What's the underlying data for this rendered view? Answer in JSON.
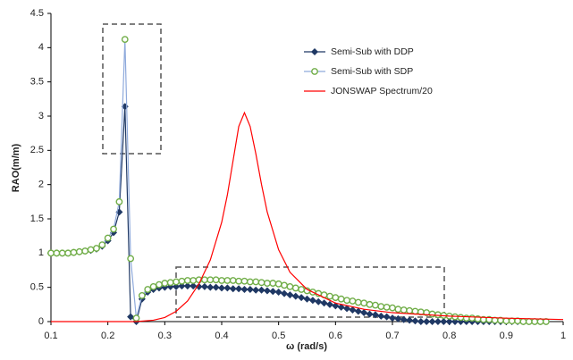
{
  "chart_data": {
    "type": "line",
    "xlabel": "ω (rad/s)",
    "ylabel": "RAO(m/m)",
    "xlim": [
      0.1,
      1
    ],
    "xticks": [
      0.1,
      0.2,
      0.3,
      0.4,
      0.5,
      0.6,
      0.7,
      0.8,
      0.9,
      1
    ],
    "ylim": [
      0,
      4.5
    ],
    "yticks": [
      0,
      0.5,
      1,
      1.5,
      2,
      2.5,
      3,
      3.5,
      4,
      4.5
    ],
    "grid": false,
    "legend": "upper-center",
    "series": [
      {
        "name": "Semi-Sub with DDP",
        "color": "#1f3864",
        "marker": "diamond",
        "x": [
          0.1,
          0.11,
          0.12,
          0.13,
          0.14,
          0.15,
          0.16,
          0.17,
          0.18,
          0.19,
          0.2,
          0.21,
          0.22,
          0.23,
          0.24,
          0.25,
          0.26,
          0.27,
          0.28,
          0.29,
          0.3,
          0.31,
          0.32,
          0.33,
          0.34,
          0.35,
          0.36,
          0.37,
          0.38,
          0.39,
          0.4,
          0.41,
          0.42,
          0.43,
          0.44,
          0.45,
          0.46,
          0.47,
          0.48,
          0.49,
          0.5,
          0.51,
          0.52,
          0.53,
          0.54,
          0.55,
          0.56,
          0.57,
          0.58,
          0.59,
          0.6,
          0.61,
          0.62,
          0.63,
          0.64,
          0.65,
          0.66,
          0.67,
          0.68,
          0.69,
          0.7,
          0.71,
          0.72,
          0.73,
          0.74,
          0.75,
          0.76,
          0.77,
          0.78,
          0.79,
          0.8,
          0.81,
          0.82,
          0.83,
          0.84,
          0.85,
          0.86,
          0.87,
          0.88,
          0.89,
          0.9,
          0.91,
          0.92,
          0.93,
          0.94,
          0.95,
          0.96,
          0.97
        ],
        "values": [
          1.0,
          1.0,
          1.0,
          1.0,
          1.01,
          1.02,
          1.03,
          1.04,
          1.06,
          1.1,
          1.18,
          1.3,
          1.6,
          3.14,
          0.07,
          0.0,
          0.33,
          0.43,
          0.47,
          0.49,
          0.5,
          0.51,
          0.51,
          0.52,
          0.52,
          0.52,
          0.51,
          0.51,
          0.5,
          0.5,
          0.49,
          0.49,
          0.48,
          0.48,
          0.47,
          0.47,
          0.46,
          0.46,
          0.45,
          0.44,
          0.43,
          0.41,
          0.39,
          0.37,
          0.35,
          0.33,
          0.31,
          0.29,
          0.27,
          0.25,
          0.23,
          0.21,
          0.19,
          0.17,
          0.15,
          0.13,
          0.11,
          0.1,
          0.08,
          0.07,
          0.05,
          0.04,
          0.03,
          0.02,
          0.01,
          0.0,
          0.0,
          0.0,
          0.0,
          0.0,
          0.0,
          0.0,
          0.0,
          0.0,
          0.0,
          0.0,
          0.0,
          0.0,
          0.0,
          0.0,
          0.0,
          0.0,
          0.0,
          0.0,
          0.0,
          0.0,
          0.0,
          0.0
        ]
      },
      {
        "name": "Semi-Sub with SDP",
        "color": "#8faadc",
        "marker": "circle",
        "marker_color": "#70ad47",
        "x": [
          0.1,
          0.11,
          0.12,
          0.13,
          0.14,
          0.15,
          0.16,
          0.17,
          0.18,
          0.19,
          0.2,
          0.21,
          0.22,
          0.23,
          0.24,
          0.25,
          0.26,
          0.27,
          0.28,
          0.29,
          0.3,
          0.31,
          0.32,
          0.33,
          0.34,
          0.35,
          0.36,
          0.37,
          0.38,
          0.39,
          0.4,
          0.41,
          0.42,
          0.43,
          0.44,
          0.45,
          0.46,
          0.47,
          0.48,
          0.49,
          0.5,
          0.51,
          0.52,
          0.53,
          0.54,
          0.55,
          0.56,
          0.57,
          0.58,
          0.59,
          0.6,
          0.61,
          0.62,
          0.63,
          0.64,
          0.65,
          0.66,
          0.67,
          0.68,
          0.69,
          0.7,
          0.71,
          0.72,
          0.73,
          0.74,
          0.75,
          0.76,
          0.77,
          0.78,
          0.79,
          0.8,
          0.81,
          0.82,
          0.83,
          0.84,
          0.85,
          0.86,
          0.87,
          0.88,
          0.89,
          0.9,
          0.91,
          0.92,
          0.93,
          0.94,
          0.95,
          0.96,
          0.97
        ],
        "values": [
          1.0,
          1.0,
          1.0,
          1.0,
          1.01,
          1.02,
          1.03,
          1.05,
          1.07,
          1.12,
          1.22,
          1.35,
          1.75,
          4.12,
          0.92,
          0.05,
          0.38,
          0.47,
          0.51,
          0.54,
          0.56,
          0.57,
          0.58,
          0.59,
          0.6,
          0.6,
          0.61,
          0.61,
          0.61,
          0.61,
          0.6,
          0.6,
          0.6,
          0.59,
          0.59,
          0.58,
          0.58,
          0.57,
          0.56,
          0.56,
          0.55,
          0.53,
          0.51,
          0.49,
          0.47,
          0.45,
          0.43,
          0.41,
          0.39,
          0.37,
          0.35,
          0.33,
          0.31,
          0.3,
          0.28,
          0.27,
          0.25,
          0.24,
          0.22,
          0.21,
          0.2,
          0.18,
          0.17,
          0.16,
          0.15,
          0.14,
          0.13,
          0.11,
          0.1,
          0.09,
          0.08,
          0.07,
          0.06,
          0.05,
          0.05,
          0.04,
          0.03,
          0.03,
          0.02,
          0.02,
          0.01,
          0.01,
          0.01,
          0.0,
          0.0,
          0.0,
          0.0,
          0.0
        ]
      },
      {
        "name": "JONSWAP Spectrum/20",
        "color": "#ff0000",
        "marker": "none",
        "x": [
          0.1,
          0.2,
          0.25,
          0.28,
          0.3,
          0.32,
          0.34,
          0.36,
          0.38,
          0.4,
          0.41,
          0.42,
          0.43,
          0.44,
          0.45,
          0.46,
          0.47,
          0.48,
          0.5,
          0.52,
          0.55,
          0.6,
          0.65,
          0.7,
          0.8,
          0.9,
          1.0
        ],
        "values": [
          0,
          0,
          0,
          0.02,
          0.06,
          0.15,
          0.3,
          0.55,
          0.9,
          1.45,
          1.85,
          2.35,
          2.85,
          3.05,
          2.85,
          2.45,
          2.0,
          1.6,
          1.05,
          0.72,
          0.47,
          0.27,
          0.18,
          0.13,
          0.08,
          0.05,
          0.03
        ]
      }
    ]
  }
}
